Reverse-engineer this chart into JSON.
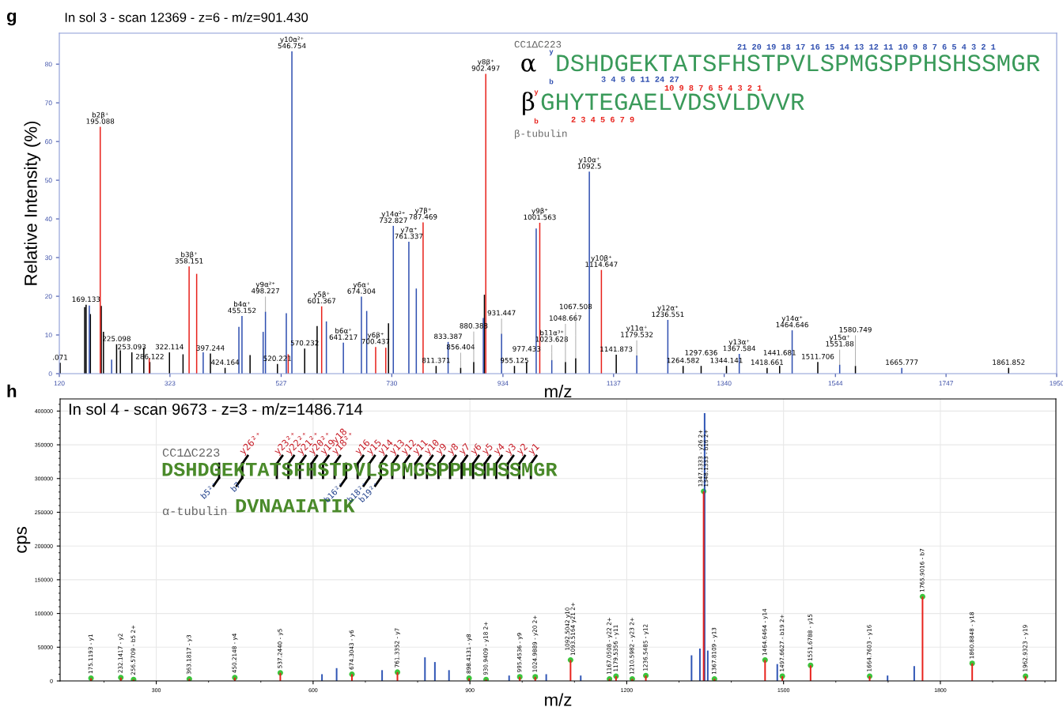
{
  "chart_data": [
    {
      "type": "bar",
      "title": "In sol 3 - scan 12369 - z=6 - m/z=901.430",
      "xlabel": "m/z",
      "ylabel": "Relative Intensity (%)",
      "xlim": [
        120,
        1950
      ],
      "ylim": [
        0,
        88
      ],
      "xticks": [
        120,
        323,
        527,
        730,
        934,
        1137,
        1340,
        1544,
        1747,
        1950
      ],
      "yticks": [
        0,
        10,
        20,
        30,
        40,
        50,
        60,
        70,
        80
      ],
      "series": [
        {
          "color": "#000000",
          "x": [
            121.5,
            166.5,
            169.133,
            177,
            197,
            201,
            225.098,
            232,
            253.093,
            275,
            286.122,
            322.114,
            347,
            397.244,
            424.164,
            470,
            520.221,
            570.232,
            593,
            724,
            811.371,
            856.404,
            880.388,
            900,
            955.125,
            977.433,
            1048.667,
            1067.508,
            1141.873,
            1264.582,
            1297.636,
            1344.141,
            1418.661,
            1441.681,
            1511.706,
            1580.749,
            1861.852
          ],
          "values": [
            2.8,
            17.2,
            17.8,
            15.4,
            17.5,
            10.8,
            7.6,
            6.0,
            5.5,
            6.7,
            3,
            5.5,
            5,
            5.2,
            1.5,
            4.8,
            2.5,
            6.5,
            12.3,
            13,
            2,
            1.5,
            3,
            20.4,
            2,
            3,
            3,
            4,
            4.9,
            2,
            2,
            2,
            1.5,
            2,
            3,
            2,
            1.5
          ]
        },
        {
          "color": "#2f4fb0",
          "x": [
            175,
            216,
            384,
            449.5,
            455.152,
            494,
            498.227,
            536.5,
            546.754,
            610,
            641.217,
            674.304,
            684,
            732.827,
            761.337,
            775,
            833.387,
            898,
            931.447,
            995,
            1023.628,
            1092.5,
            1179.532,
            1236.551,
            1367.584,
            1464.646,
            1551.88,
            1665.777
          ],
          "values": [
            17.6,
            3.6,
            5.5,
            12.1,
            14.9,
            10.8,
            16.0,
            15.6,
            83.3,
            13.5,
            8.0,
            19.9,
            16.2,
            38.2,
            34.1,
            22,
            8.2,
            14.4,
            10.3,
            37.5,
            3.5,
            52.2,
            4.7,
            13.9,
            5.1,
            11.2,
            2.3,
            1.5
          ]
        },
        {
          "color": "#e8221c",
          "x": [
            195.088,
            285,
            358.151,
            372,
            540,
            601.367,
            700.437,
            719,
            787.469,
            902.497,
            1001.563,
            1114.647
          ],
          "values": [
            63.8,
            4,
            27.7,
            25.8,
            5,
            17.4,
            6.9,
            6.7,
            39.1,
            77.5,
            39.0,
            26.8
          ]
        }
      ],
      "annotations": [
        "g",
        "CC1ΔC223",
        "α",
        "DSHDGEKTATSFHSTPVLSPMGSPPHSHSSMGR",
        "β",
        "GHYTEGAELVDSVLDVVR",
        "β-tubulin",
        "21 20 19 18 17 16 15 14 13 12 11 10 9 8 7 6 5 4 3 2 1",
        "3 4 5 6 11 24 27",
        "10 9 8 7 6 5 4 3 2 1",
        "2 3 4 5 6 7 9",
        "y",
        "b",
        "y",
        "b",
        {
          "text": ".071",
          "x": 121.5,
          "y": 2.8
        },
        {
          "text": "169.133",
          "x": 169.133,
          "y": 17.8
        },
        {
          "text": "b2β⁺\n195.088",
          "x": 195.088,
          "y": 63.8
        },
        {
          "text": "225.098",
          "x": 225.098,
          "y": 7.6
        },
        {
          "text": "253.093",
          "x": 253.093,
          "y": 5.5
        },
        {
          "text": "286.122",
          "x": 286.122,
          "y": 3
        },
        {
          "text": "322.114",
          "x": 322.114,
          "y": 5.5
        },
        {
          "text": "b3β⁺\n358.151",
          "x": 358.151,
          "y": 27.7
        },
        {
          "text": "397.244",
          "x": 397.244,
          "y": 5.2
        },
        {
          "text": "424.164",
          "x": 424.164,
          "y": 1.5
        },
        {
          "text": "b4α⁺\n455.152",
          "x": 455.152,
          "y": 14.9
        },
        {
          "text": "y9α²⁺\n498.227",
          "x": 498.227,
          "y": 16.0
        },
        {
          "text": "520.221",
          "x": 520.221,
          "y": 2.5
        },
        {
          "text": "y10α²⁺\n546.754",
          "x": 546.754,
          "y": 83.3
        },
        {
          "text": "570.232",
          "x": 570.232,
          "y": 6.5
        },
        {
          "text": "y5β⁺\n601.367",
          "x": 601.367,
          "y": 17.4
        },
        {
          "text": "b6α⁺\n641.217",
          "x": 641.217,
          "y": 8.0
        },
        {
          "text": "y6α⁺\n674.304",
          "x": 674.304,
          "y": 19.9
        },
        {
          "text": "y6β⁺\n700.437",
          "x": 700.437,
          "y": 6.9
        },
        {
          "text": "y14α²⁺\n732.827",
          "x": 732.827,
          "y": 38.2
        },
        {
          "text": "y7α⁺\n761.337",
          "x": 761.337,
          "y": 34.1
        },
        {
          "text": "y7β⁺\n787.469",
          "x": 787.469,
          "y": 39.1
        },
        {
          "text": "811.371",
          "x": 811.371,
          "y": 2
        },
        {
          "text": "833.387",
          "x": 833.387,
          "y": 8.2
        },
        {
          "text": "856.404",
          "x": 856.404,
          "y": 1.5
        },
        {
          "text": "880.388",
          "x": 880.388,
          "y": 3
        },
        {
          "text": "y8β⁺\n902.497",
          "x": 902.497,
          "y": 77.5
        },
        {
          "text": "931.447",
          "x": 931.447,
          "y": 10.3
        },
        {
          "text": "955.125",
          "x": 955.125,
          "y": 2
        },
        {
          "text": "977.433",
          "x": 977.433,
          "y": 3
        },
        {
          "text": "y9β⁺\n1001.563",
          "x": 1001.563,
          "y": 39.0
        },
        {
          "text": "b11α³⁺\n1023.628",
          "x": 1023.628,
          "y": 3.5
        },
        {
          "text": "1048.667",
          "x": 1048.667,
          "y": 3
        },
        {
          "text": "1067.508",
          "x": 1067.508,
          "y": 4
        },
        {
          "text": "y10α⁺\n1092.5",
          "x": 1092.5,
          "y": 52.2
        },
        {
          "text": "y10β⁺\n1114.647",
          "x": 1114.647,
          "y": 26.8
        },
        {
          "text": "1141.873",
          "x": 1141.873,
          "y": 4.9
        },
        {
          "text": "y11α⁺\n1179.532",
          "x": 1179.532,
          "y": 4.7
        },
        {
          "text": "y12α⁺\n1236.551",
          "x": 1236.551,
          "y": 13.9
        },
        {
          "text": "1264.582",
          "x": 1264.582,
          "y": 2
        },
        {
          "text": "1297.636",
          "x": 1297.636,
          "y": 2
        },
        {
          "text": "1344.141",
          "x": 1344.141,
          "y": 2
        },
        {
          "text": "y13α⁺\n1367.584",
          "x": 1367.584,
          "y": 5.1
        },
        {
          "text": "1418.661",
          "x": 1418.661,
          "y": 1.5
        },
        {
          "text": "1441.681",
          "x": 1441.681,
          "y": 2
        },
        {
          "text": "y14α⁺\n1464.646",
          "x": 1464.646,
          "y": 11.2
        },
        {
          "text": "1511.706",
          "x": 1511.706,
          "y": 3
        },
        {
          "text": "y15α⁺\n1551.88",
          "x": 1551.88,
          "y": 2.3
        },
        {
          "text": "1580.749",
          "x": 1580.749,
          "y": 2
        },
        {
          "text": "1665.777",
          "x": 1665.777,
          "y": 1.5
        },
        {
          "text": "1861.852",
          "x": 1861.852,
          "y": 1.5
        }
      ]
    },
    {
      "type": "bar",
      "title": "In sol 4 - scan 9673 - z=3 - m/z=1486.714",
      "xlabel": "m/z",
      "ylabel": "cps",
      "xlim": [
        116,
        2021
      ],
      "ylim": [
        0,
        418000
      ],
      "xticks": [
        300,
        600,
        900,
        1200,
        1500,
        1800
      ],
      "yticks": [
        0,
        50000,
        100000,
        150000,
        200000,
        250000,
        300000,
        350000,
        400000
      ],
      "grid": true,
      "series": [
        {
          "color": "#2f55b5",
          "x": [
            617,
            645,
            732,
            814,
            833,
            860,
            975,
            1046,
            1112,
            1324,
            1340,
            1349,
            1355,
            1488,
            1699,
            1750
          ],
          "values": [
            10000,
            19000,
            16000,
            35000,
            28000,
            16000,
            8000,
            10000,
            8000,
            38000,
            48000,
            397000,
            45000,
            25000,
            8000,
            22000
          ]
        },
        {
          "color": "#e8221c",
          "x": [
            175.1193,
            232.1417,
            256.5709,
            363.1817,
            450.2148,
            537.244,
            674.3043,
            761.3352,
            898.4131,
            930.9409,
            995.4536,
            1024.9889,
            1092.5042,
            1167.0508,
            1179.5356,
            1210.5982,
            1236.5485,
            1347.1333,
            1367.8109,
            1464.6464,
            1497.6627,
            1551.6788,
            1664.7603,
            1765.9016,
            1860.8848,
            1962.9323
          ],
          "values": [
            4000,
            5000,
            2000,
            3000,
            5000,
            12000,
            10000,
            13000,
            4000,
            2000,
            6000,
            6000,
            31000,
            3000,
            7000,
            3000,
            8000,
            281000,
            3000,
            31000,
            7000,
            23000,
            7000,
            125000,
            26000,
            7000
          ]
        },
        {
          "type": "scatter",
          "marker": "circle",
          "color": "#3cc43c",
          "x": [
            175.1193,
            232.1417,
            256.5709,
            363.1817,
            450.2148,
            537.244,
            674.3043,
            761.3352,
            898.4131,
            930.9409,
            995.4536,
            1024.9889,
            1092.5042,
            1167.0508,
            1179.5356,
            1210.5982,
            1236.5485,
            1347.1333,
            1367.8109,
            1464.6464,
            1497.6627,
            1551.6788,
            1664.7603,
            1765.9016,
            1860.8848,
            1962.9323
          ],
          "values": [
            4000,
            5000,
            2000,
            3000,
            5000,
            12000,
            10000,
            13000,
            4000,
            2000,
            6000,
            6000,
            31000,
            3000,
            7000,
            3000,
            8000,
            281000,
            3000,
            31000,
            7000,
            23000,
            7000,
            125000,
            26000,
            7000
          ]
        }
      ],
      "annotations": [
        "h",
        "CC1ΔC223",
        "DSHDGEKTATSFHSTPVLSPMGSPPHSHSSMGR",
        "DVNAAIATIK",
        "α-tubulin",
        "y26²⁺",
        "y23²⁺",
        "y22²⁺",
        "y21²⁺",
        "y20²⁺",
        "y19",
        "y18",
        "y18²⁺",
        "y16",
        "y15",
        "y14",
        "y13",
        "y12",
        "y11",
        "y10",
        "y9",
        "y8",
        "y7",
        "y6",
        "y5",
        "y4",
        "y3",
        "y2",
        "y1",
        "b5²⁺",
        "b7",
        "b16²⁺",
        "b18²⁺",
        "b19²⁺",
        {
          "text": "175.1193 - y1",
          "x": 175.1193,
          "y": 4000
        },
        {
          "text": "232.1417 - y2",
          "x": 232.1417,
          "y": 5000
        },
        {
          "text": "256.5709 - b5 2+",
          "x": 256.5709,
          "y": 2000
        },
        {
          "text": "363.1817 - y3",
          "x": 363.1817,
          "y": 3000
        },
        {
          "text": "450.2148 - y4",
          "x": 450.2148,
          "y": 5000
        },
        {
          "text": "537.2440 - y5",
          "x": 537.244,
          "y": 12000
        },
        {
          "text": "674.3043 - y6",
          "x": 674.3043,
          "y": 10000
        },
        {
          "text": "761.3352 - y7",
          "x": 761.3352,
          "y": 13000
        },
        {
          "text": "898.4131 - y8",
          "x": 898.4131,
          "y": 4000
        },
        {
          "text": "930.9409 - y18 2+",
          "x": 930.9409,
          "y": 2000
        },
        {
          "text": "995.4536 - y9",
          "x": 995.4536,
          "y": 6000
        },
        {
          "text": "1024.9889 - y20 2+",
          "x": 1024.9889,
          "y": 6000
        },
        {
          "text": "1092.5042 y10\n1093.5164 y21 2+",
          "x": 1092.5042,
          "y": 31000
        },
        {
          "text": "1167.0508 - y22 2+",
          "x": 1167.0508,
          "y": 3000
        },
        {
          "text": "1179.5356 - y11",
          "x": 1179.5356,
          "y": 7000
        },
        {
          "text": "1210.5982 - y23 2+",
          "x": 1210.5982,
          "y": 3000
        },
        {
          "text": "1236.5485 - y12",
          "x": 1236.5485,
          "y": 8000
        },
        {
          "text": "1347.1333 - y26 2+\n1348.1333 - b16 2+",
          "x": 1347.1333,
          "y": 281000
        },
        {
          "text": "1367.8109 - y13",
          "x": 1367.8109,
          "y": 3000
        },
        {
          "text": "1464.6464 - y14",
          "x": 1464.6464,
          "y": 31000
        },
        {
          "text": "1497.6627 - b19 2+",
          "x": 1497.6627,
          "y": 7000
        },
        {
          "text": "1551.6788 - y15",
          "x": 1551.6788,
          "y": 23000
        },
        {
          "text": "1664.7603 - y16",
          "x": 1664.7603,
          "y": 7000
        },
        {
          "text": "1765.9016 - b7",
          "x": 1765.9016,
          "y": 125000
        },
        {
          "text": "1860.8848 - y18",
          "x": 1860.8848,
          "y": 26000
        },
        {
          "text": "1962.9323 - y19",
          "x": 1962.9323,
          "y": 7000
        }
      ]
    }
  ]
}
